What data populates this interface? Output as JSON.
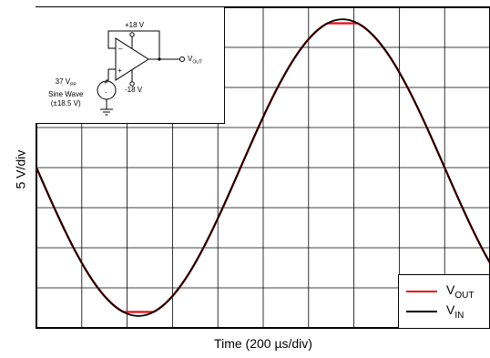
{
  "chart_data": {
    "type": "line",
    "xlabel": "Time (200 µs/div)",
    "ylabel": "5 V/div",
    "x_divisions": 10,
    "y_divisions": 8,
    "volts_per_div": 5,
    "us_per_div": 200,
    "xlim_us": [
      0,
      2000
    ],
    "ylim_v": [
      -20,
      20
    ],
    "grid": true,
    "legend_position": "bottom-right",
    "series": [
      {
        "name": "OUT",
        "prefix": "V",
        "color": "#e8141b",
        "description": "sine clipped at output rails",
        "amplitude_v": 18.5,
        "period_us": 1800,
        "phase_start": "zero-crossing-falling",
        "clip_v": [
          -18.0,
          18.0
        ]
      },
      {
        "name": "IN",
        "prefix": "V",
        "color": "#000000",
        "amplitude_v": 18.5,
        "period_us": 1800,
        "phase_start": "zero-crossing-falling"
      }
    ]
  },
  "inset": {
    "pos_supply": "+18 V",
    "neg_supply": "-18 V",
    "output_label_prefix": "V",
    "output_label_sub": "OUT",
    "source_line1_prefix": "37 V",
    "source_line1_sub": "PP",
    "source_line2": "Sine Wave",
    "source_line3": "(±18.5 V)",
    "plus": "+",
    "minus": "-"
  }
}
